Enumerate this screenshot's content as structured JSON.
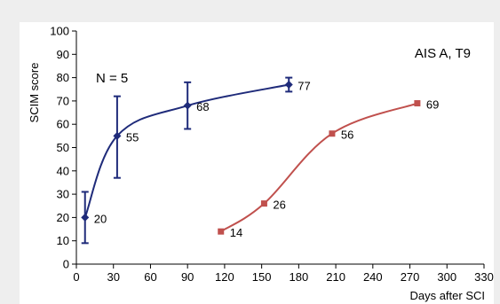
{
  "chart_data": {
    "type": "line",
    "xlabel": "Days after SCI",
    "ylabel": "SCIM score",
    "xlim": [
      0,
      330
    ],
    "ylim": [
      0,
      100
    ],
    "xticks": [
      0,
      30,
      60,
      90,
      120,
      150,
      180,
      210,
      240,
      270,
      300,
      330
    ],
    "yticks": [
      0,
      10,
      20,
      30,
      40,
      50,
      60,
      70,
      80,
      90,
      100
    ],
    "grid": false,
    "legend": "none",
    "annotations": [
      {
        "text": "N = 5",
        "position": "upper-left"
      },
      {
        "text": "AIS A, T9",
        "position": "upper-right"
      }
    ],
    "series": [
      {
        "color": "#1f2b7a",
        "marker": "diamond",
        "smooth": true,
        "points": [
          {
            "x": 7,
            "y": 20,
            "err_low": 9,
            "err_high": 31,
            "label": "20"
          },
          {
            "x": 33,
            "y": 55,
            "err_low": 37,
            "err_high": 72,
            "label": "55"
          },
          {
            "x": 90,
            "y": 68,
            "err_low": 58,
            "err_high": 78,
            "label": "68"
          },
          {
            "x": 172,
            "y": 77,
            "err_low": 74,
            "err_high": 80,
            "label": "77"
          }
        ]
      },
      {
        "color": "#c0504d",
        "marker": "square",
        "smooth": true,
        "points": [
          {
            "x": 117,
            "y": 14,
            "label": "14"
          },
          {
            "x": 152,
            "y": 26,
            "label": "26"
          },
          {
            "x": 207,
            "y": 56,
            "label": "56"
          },
          {
            "x": 276,
            "y": 69,
            "label": "69"
          }
        ]
      }
    ]
  }
}
